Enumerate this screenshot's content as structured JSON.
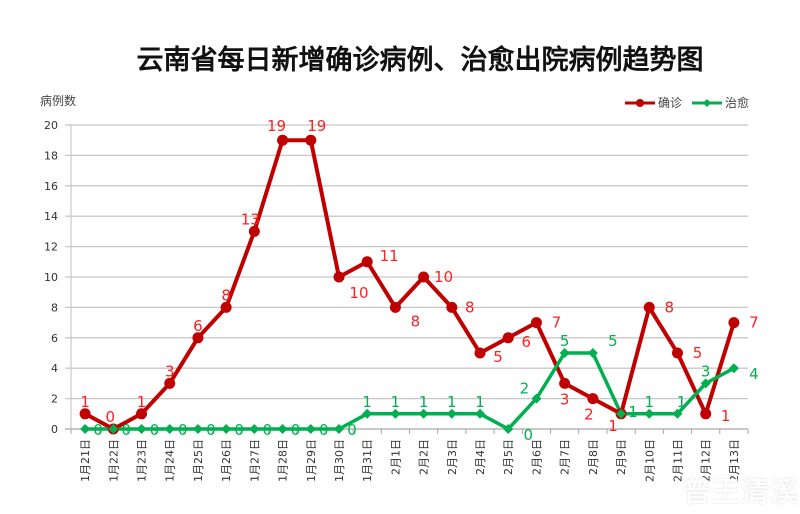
{
  "chart_data": {
    "type": "line",
    "title": "云南省每日新增确诊病例、治愈出院病例趋势图",
    "xlabel": "",
    "ylabel": "病例数",
    "ylim": [
      0,
      20
    ],
    "yticks": [
      0,
      2,
      4,
      6,
      8,
      10,
      12,
      14,
      16,
      18,
      20
    ],
    "grid": true,
    "legend_position": "top-right",
    "categories": [
      "1月21日",
      "1月22日",
      "1月23日",
      "1月24日",
      "1月25日",
      "1月26日",
      "1月27日",
      "1月28日",
      "1月29日",
      "1月30日",
      "1月31日",
      "2月1日",
      "2月2日",
      "2月3日",
      "2月4日",
      "2月5日",
      "2月6日",
      "2月7日",
      "2月8日",
      "2月9日",
      "2月10日",
      "2月11日",
      "2月12日",
      "2月13日"
    ],
    "series": [
      {
        "name": "确诊",
        "color": "#C00000",
        "label_color": "#FF2020",
        "values": [
          1,
          0,
          1,
          3,
          6,
          8,
          13,
          19,
          19,
          10,
          11,
          8,
          10,
          8,
          5,
          6,
          7,
          3,
          2,
          1,
          8,
          5,
          1,
          7
        ]
      },
      {
        "name": "治愈",
        "color": "#00B050",
        "label_color": "#00B050",
        "values": [
          0,
          0,
          0,
          0,
          0,
          0,
          0,
          0,
          0,
          0,
          1,
          1,
          1,
          1,
          1,
          0,
          2,
          5,
          5,
          1,
          1,
          1,
          3,
          4
        ]
      }
    ]
  },
  "header": {
    "title": "云南省每日新增确诊病例、治愈出院病例趋势图"
  },
  "axis": {
    "ylabel": "病例数"
  },
  "legend": {
    "items": [
      {
        "label": "确诊",
        "color": "#C00000"
      },
      {
        "label": "治愈",
        "color": "#00B050"
      }
    ]
  },
  "watermark": {
    "text": "普王清溪"
  }
}
